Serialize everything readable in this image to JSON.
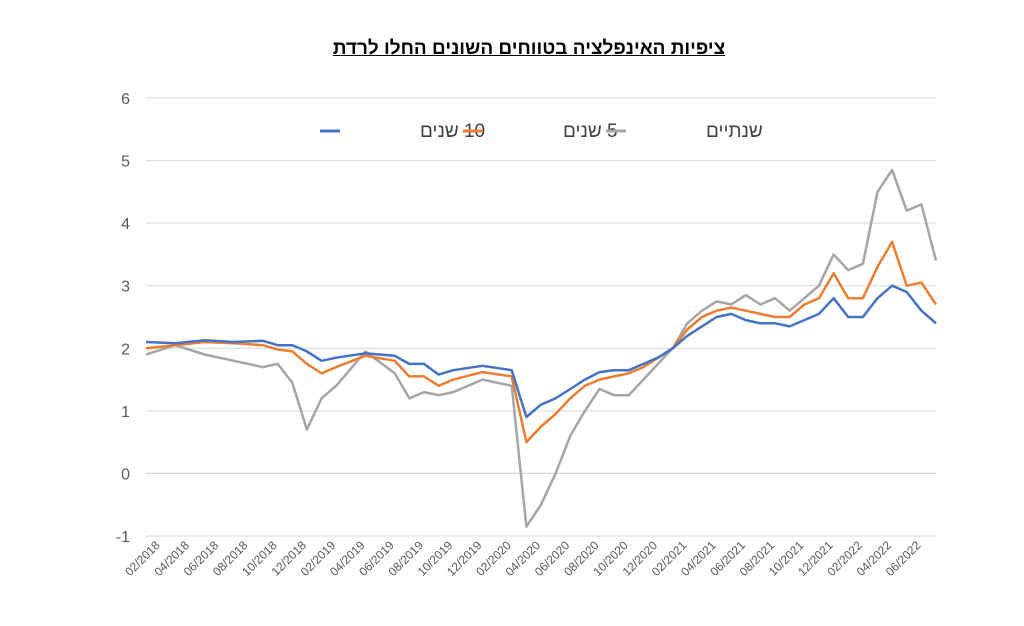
{
  "chart_data": {
    "type": "line",
    "title": "ציפיות האינפלציה בטווחים השונים החלו לרדת",
    "ylim": [
      -1,
      6
    ],
    "yticks": [
      -1,
      0,
      1,
      2,
      3,
      4,
      5,
      6
    ],
    "grid": true,
    "legend_position": "top-center",
    "x_tick_labels": [
      "02/2018",
      "04/2018",
      "06/2018",
      "08/2018",
      "10/2018",
      "12/2018",
      "02/2019",
      "04/2019",
      "06/2019",
      "08/2019",
      "10/2019",
      "12/2019",
      "02/2020",
      "04/2020",
      "06/2020",
      "08/2020",
      "10/2020",
      "12/2020",
      "02/2021",
      "04/2021",
      "06/2021",
      "08/2021",
      "10/2021",
      "12/2021",
      "02/2022",
      "04/2022",
      "06/2022"
    ],
    "x": [
      "2018-01",
      "2018-03",
      "2018-05",
      "2018-07",
      "2018-09",
      "2018-10",
      "2018-11",
      "2018-12",
      "2019-01",
      "2019-02",
      "2019-04",
      "2019-06",
      "2019-07",
      "2019-08",
      "2019-09",
      "2019-10",
      "2019-12",
      "2020-02",
      "2020-03",
      "2020-04",
      "2020-05",
      "2020-06",
      "2020-07",
      "2020-08",
      "2020-09",
      "2020-10",
      "2020-11",
      "2020-12",
      "2021-01",
      "2021-02",
      "2021-03",
      "2021-04",
      "2021-05",
      "2021-06",
      "2021-07",
      "2021-08",
      "2021-09",
      "2021-10",
      "2021-11",
      "2021-12",
      "2022-01",
      "2022-02",
      "2022-03",
      "2022-04",
      "2022-05",
      "2022-06",
      "2022-07"
    ],
    "series": [
      {
        "name": "10 שנים",
        "color": "#4472c4",
        "values": [
          2.1,
          2.08,
          2.13,
          2.1,
          2.12,
          2.05,
          2.05,
          1.95,
          1.8,
          1.85,
          1.92,
          1.88,
          1.75,
          1.75,
          1.58,
          1.65,
          1.72,
          1.65,
          0.9,
          1.1,
          1.2,
          1.35,
          1.5,
          1.62,
          1.65,
          1.65,
          1.75,
          1.85,
          2.0,
          2.2,
          2.35,
          2.5,
          2.55,
          2.45,
          2.4,
          2.4,
          2.35,
          2.45,
          2.55,
          2.8,
          2.5,
          2.5,
          2.8,
          3.0,
          2.9,
          2.6,
          2.4
        ]
      },
      {
        "name": "5 שנים",
        "color": "#ed7d31",
        "values": [
          2.0,
          2.05,
          2.1,
          2.08,
          2.05,
          1.98,
          1.95,
          1.75,
          1.6,
          1.7,
          1.88,
          1.8,
          1.55,
          1.55,
          1.4,
          1.5,
          1.62,
          1.55,
          0.5,
          0.75,
          0.95,
          1.2,
          1.4,
          1.5,
          1.55,
          1.6,
          1.7,
          1.85,
          2.0,
          2.3,
          2.5,
          2.6,
          2.65,
          2.6,
          2.55,
          2.5,
          2.5,
          2.7,
          2.8,
          3.2,
          2.8,
          2.8,
          3.3,
          3.7,
          3.0,
          3.05,
          2.7
        ]
      },
      {
        "name": "שנתיים",
        "color": "#a5a5a5",
        "values": [
          1.9,
          2.05,
          1.9,
          1.8,
          1.7,
          1.75,
          1.45,
          0.7,
          1.2,
          1.4,
          1.95,
          1.6,
          1.2,
          1.3,
          1.25,
          1.3,
          1.5,
          1.4,
          -0.85,
          -0.5,
          0.0,
          0.6,
          1.0,
          1.35,
          1.25,
          1.25,
          1.5,
          1.75,
          2.0,
          2.4,
          2.6,
          2.75,
          2.7,
          2.85,
          2.7,
          2.8,
          2.6,
          2.8,
          3.0,
          3.5,
          3.25,
          3.35,
          4.5,
          4.85,
          4.2,
          4.3,
          3.4
        ]
      }
    ]
  }
}
